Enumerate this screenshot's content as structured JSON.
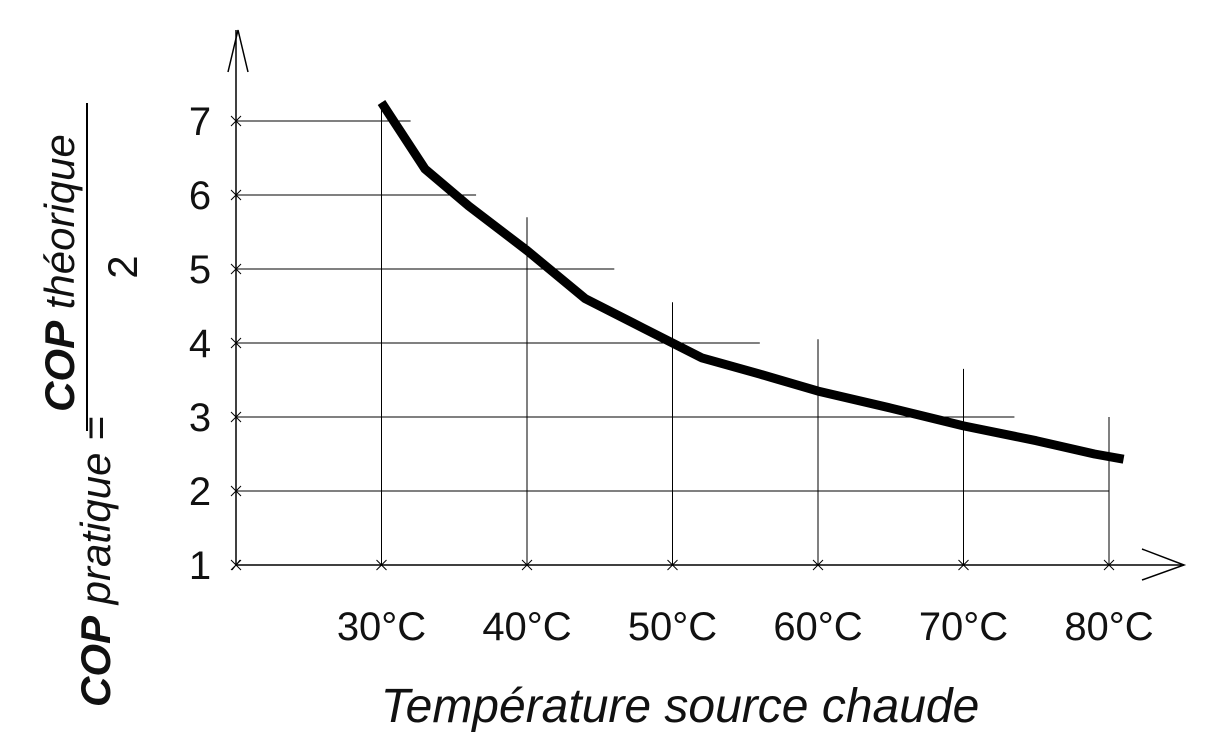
{
  "chart_data": {
    "type": "line",
    "xlabel": "Température source chaude",
    "ylabel": {
      "left_bold": "COP",
      "left_text": " pratique =",
      "numerator_bold": "COP",
      "numerator_text": " théorique",
      "denominator": "2"
    },
    "x_ticks": [
      {
        "value": 30,
        "label": "30°C"
      },
      {
        "value": 40,
        "label": "40°C"
      },
      {
        "value": 50,
        "label": "50°C"
      },
      {
        "value": 60,
        "label": "60°C"
      },
      {
        "value": 70,
        "label": "70°C"
      },
      {
        "value": 80,
        "label": "80°C"
      }
    ],
    "y_ticks": [
      {
        "value": 1,
        "label": "1"
      },
      {
        "value": 2,
        "label": "2"
      },
      {
        "value": 3,
        "label": "3"
      },
      {
        "value": 4,
        "label": "4"
      },
      {
        "value": 5,
        "label": "5"
      },
      {
        "value": 6,
        "label": "6"
      },
      {
        "value": 7,
        "label": "7"
      }
    ],
    "xlim": [
      20,
      85
    ],
    "ylim": [
      1,
      8
    ],
    "grid": true,
    "series": [
      {
        "color": "#000000",
        "points": [
          {
            "x": 30,
            "y": 7.25
          },
          {
            "x": 33,
            "y": 6.35
          },
          {
            "x": 36,
            "y": 5.85
          },
          {
            "x": 40,
            "y": 5.25
          },
          {
            "x": 44,
            "y": 4.6
          },
          {
            "x": 48,
            "y": 4.2
          },
          {
            "x": 52,
            "y": 3.8
          },
          {
            "x": 56,
            "y": 3.58
          },
          {
            "x": 60,
            "y": 3.35
          },
          {
            "x": 65,
            "y": 3.12
          },
          {
            "x": 70,
            "y": 2.88
          },
          {
            "x": 75,
            "y": 2.68
          },
          {
            "x": 79,
            "y": 2.5
          },
          {
            "x": 81,
            "y": 2.43
          }
        ]
      }
    ]
  }
}
